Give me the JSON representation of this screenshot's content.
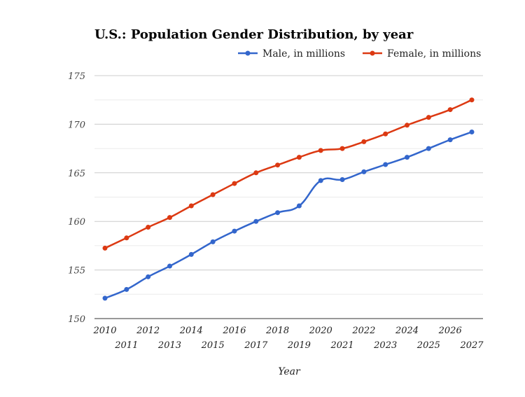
{
  "chart_data": {
    "type": "line",
    "title": "U.S.: Population Gender Distribution, by year",
    "xlabel": "Year",
    "ylabel": "",
    "ylim": [
      150,
      175
    ],
    "yticks": [
      150,
      155,
      160,
      165,
      170,
      175
    ],
    "grid": true,
    "legend_position": "top-right",
    "x": [
      2010,
      2011,
      2012,
      2013,
      2014,
      2015,
      2016,
      2017,
      2018,
      2019,
      2020,
      2021,
      2022,
      2023,
      2024,
      2025,
      2026,
      2027
    ],
    "series": [
      {
        "name": "Male, in millions",
        "color": "#3366cc",
        "values": [
          152.1,
          153.0,
          154.3,
          155.4,
          156.6,
          157.9,
          159.0,
          160.0,
          160.9,
          161.6,
          164.2,
          164.3,
          165.1,
          165.85,
          166.6,
          167.5,
          168.4,
          169.2
        ]
      },
      {
        "name": "Female, in millions",
        "color": "#dc3912",
        "values": [
          157.25,
          158.3,
          159.4,
          160.4,
          161.6,
          162.75,
          163.9,
          165.0,
          165.8,
          166.6,
          167.3,
          167.5,
          168.2,
          169.0,
          169.9,
          170.7,
          171.5,
          172.5
        ]
      }
    ]
  }
}
